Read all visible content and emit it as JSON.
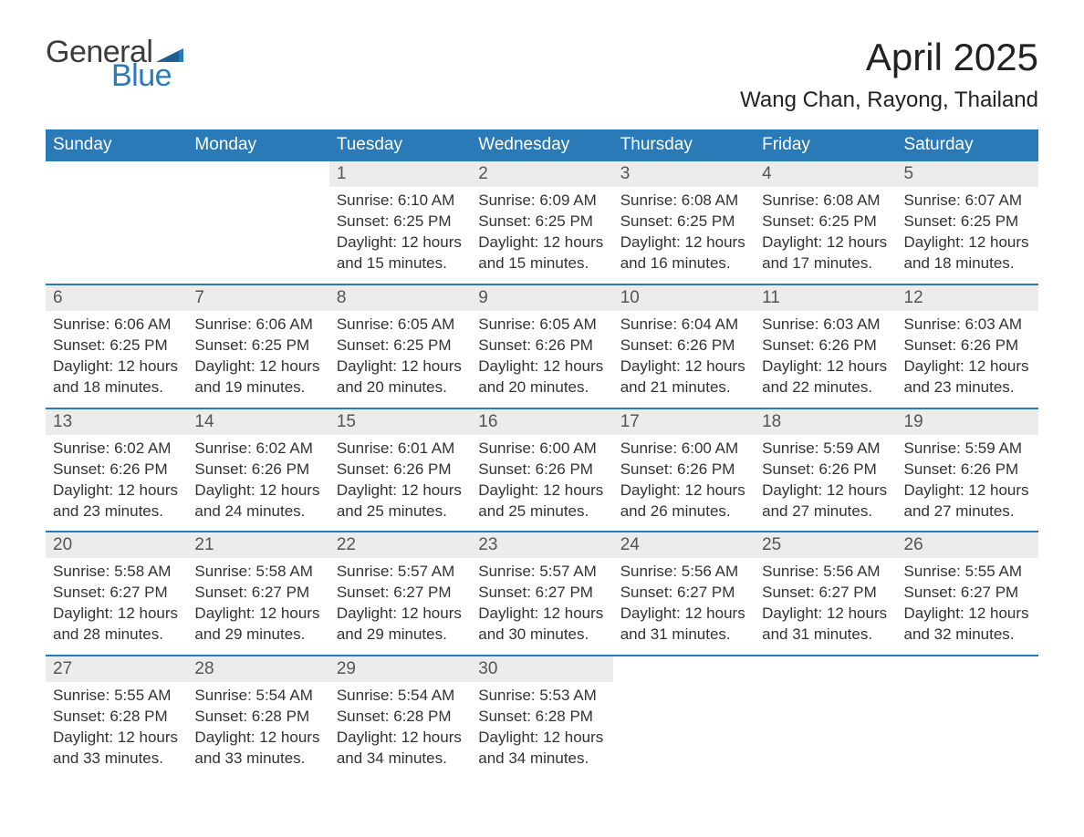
{
  "brand": {
    "word1": "General",
    "word2": "Blue",
    "flag_color": "#2a7ab8",
    "word1_color": "#3b3b3b",
    "word2_color": "#2a7ab8"
  },
  "title": "April 2025",
  "location": "Wang Chan, Rayong, Thailand",
  "colors": {
    "header_bg": "#2a7ab8",
    "header_text": "#ffffff",
    "daynum_bg": "#ececec",
    "week_border": "#2a7ab8",
    "body_text": "#333333",
    "page_bg": "#ffffff"
  },
  "day_headers": [
    "Sunday",
    "Monday",
    "Tuesday",
    "Wednesday",
    "Thursday",
    "Friday",
    "Saturday"
  ],
  "weeks": [
    [
      {
        "empty": true
      },
      {
        "empty": true
      },
      {
        "num": "1",
        "sunrise": "Sunrise: 6:10 AM",
        "sunset": "Sunset: 6:25 PM",
        "day1": "Daylight: 12 hours",
        "day2": "and 15 minutes."
      },
      {
        "num": "2",
        "sunrise": "Sunrise: 6:09 AM",
        "sunset": "Sunset: 6:25 PM",
        "day1": "Daylight: 12 hours",
        "day2": "and 15 minutes."
      },
      {
        "num": "3",
        "sunrise": "Sunrise: 6:08 AM",
        "sunset": "Sunset: 6:25 PM",
        "day1": "Daylight: 12 hours",
        "day2": "and 16 minutes."
      },
      {
        "num": "4",
        "sunrise": "Sunrise: 6:08 AM",
        "sunset": "Sunset: 6:25 PM",
        "day1": "Daylight: 12 hours",
        "day2": "and 17 minutes."
      },
      {
        "num": "5",
        "sunrise": "Sunrise: 6:07 AM",
        "sunset": "Sunset: 6:25 PM",
        "day1": "Daylight: 12 hours",
        "day2": "and 18 minutes."
      }
    ],
    [
      {
        "num": "6",
        "sunrise": "Sunrise: 6:06 AM",
        "sunset": "Sunset: 6:25 PM",
        "day1": "Daylight: 12 hours",
        "day2": "and 18 minutes."
      },
      {
        "num": "7",
        "sunrise": "Sunrise: 6:06 AM",
        "sunset": "Sunset: 6:25 PM",
        "day1": "Daylight: 12 hours",
        "day2": "and 19 minutes."
      },
      {
        "num": "8",
        "sunrise": "Sunrise: 6:05 AM",
        "sunset": "Sunset: 6:25 PM",
        "day1": "Daylight: 12 hours",
        "day2": "and 20 minutes."
      },
      {
        "num": "9",
        "sunrise": "Sunrise: 6:05 AM",
        "sunset": "Sunset: 6:26 PM",
        "day1": "Daylight: 12 hours",
        "day2": "and 20 minutes."
      },
      {
        "num": "10",
        "sunrise": "Sunrise: 6:04 AM",
        "sunset": "Sunset: 6:26 PM",
        "day1": "Daylight: 12 hours",
        "day2": "and 21 minutes."
      },
      {
        "num": "11",
        "sunrise": "Sunrise: 6:03 AM",
        "sunset": "Sunset: 6:26 PM",
        "day1": "Daylight: 12 hours",
        "day2": "and 22 minutes."
      },
      {
        "num": "12",
        "sunrise": "Sunrise: 6:03 AM",
        "sunset": "Sunset: 6:26 PM",
        "day1": "Daylight: 12 hours",
        "day2": "and 23 minutes."
      }
    ],
    [
      {
        "num": "13",
        "sunrise": "Sunrise: 6:02 AM",
        "sunset": "Sunset: 6:26 PM",
        "day1": "Daylight: 12 hours",
        "day2": "and 23 minutes."
      },
      {
        "num": "14",
        "sunrise": "Sunrise: 6:02 AM",
        "sunset": "Sunset: 6:26 PM",
        "day1": "Daylight: 12 hours",
        "day2": "and 24 minutes."
      },
      {
        "num": "15",
        "sunrise": "Sunrise: 6:01 AM",
        "sunset": "Sunset: 6:26 PM",
        "day1": "Daylight: 12 hours",
        "day2": "and 25 minutes."
      },
      {
        "num": "16",
        "sunrise": "Sunrise: 6:00 AM",
        "sunset": "Sunset: 6:26 PM",
        "day1": "Daylight: 12 hours",
        "day2": "and 25 minutes."
      },
      {
        "num": "17",
        "sunrise": "Sunrise: 6:00 AM",
        "sunset": "Sunset: 6:26 PM",
        "day1": "Daylight: 12 hours",
        "day2": "and 26 minutes."
      },
      {
        "num": "18",
        "sunrise": "Sunrise: 5:59 AM",
        "sunset": "Sunset: 6:26 PM",
        "day1": "Daylight: 12 hours",
        "day2": "and 27 minutes."
      },
      {
        "num": "19",
        "sunrise": "Sunrise: 5:59 AM",
        "sunset": "Sunset: 6:26 PM",
        "day1": "Daylight: 12 hours",
        "day2": "and 27 minutes."
      }
    ],
    [
      {
        "num": "20",
        "sunrise": "Sunrise: 5:58 AM",
        "sunset": "Sunset: 6:27 PM",
        "day1": "Daylight: 12 hours",
        "day2": "and 28 minutes."
      },
      {
        "num": "21",
        "sunrise": "Sunrise: 5:58 AM",
        "sunset": "Sunset: 6:27 PM",
        "day1": "Daylight: 12 hours",
        "day2": "and 29 minutes."
      },
      {
        "num": "22",
        "sunrise": "Sunrise: 5:57 AM",
        "sunset": "Sunset: 6:27 PM",
        "day1": "Daylight: 12 hours",
        "day2": "and 29 minutes."
      },
      {
        "num": "23",
        "sunrise": "Sunrise: 5:57 AM",
        "sunset": "Sunset: 6:27 PM",
        "day1": "Daylight: 12 hours",
        "day2": "and 30 minutes."
      },
      {
        "num": "24",
        "sunrise": "Sunrise: 5:56 AM",
        "sunset": "Sunset: 6:27 PM",
        "day1": "Daylight: 12 hours",
        "day2": "and 31 minutes."
      },
      {
        "num": "25",
        "sunrise": "Sunrise: 5:56 AM",
        "sunset": "Sunset: 6:27 PM",
        "day1": "Daylight: 12 hours",
        "day2": "and 31 minutes."
      },
      {
        "num": "26",
        "sunrise": "Sunrise: 5:55 AM",
        "sunset": "Sunset: 6:27 PM",
        "day1": "Daylight: 12 hours",
        "day2": "and 32 minutes."
      }
    ],
    [
      {
        "num": "27",
        "sunrise": "Sunrise: 5:55 AM",
        "sunset": "Sunset: 6:28 PM",
        "day1": "Daylight: 12 hours",
        "day2": "and 33 minutes."
      },
      {
        "num": "28",
        "sunrise": "Sunrise: 5:54 AM",
        "sunset": "Sunset: 6:28 PM",
        "day1": "Daylight: 12 hours",
        "day2": "and 33 minutes."
      },
      {
        "num": "29",
        "sunrise": "Sunrise: 5:54 AM",
        "sunset": "Sunset: 6:28 PM",
        "day1": "Daylight: 12 hours",
        "day2": "and 34 minutes."
      },
      {
        "num": "30",
        "sunrise": "Sunrise: 5:53 AM",
        "sunset": "Sunset: 6:28 PM",
        "day1": "Daylight: 12 hours",
        "day2": "and 34 minutes."
      },
      {
        "empty": true
      },
      {
        "empty": true
      },
      {
        "empty": true
      }
    ]
  ]
}
